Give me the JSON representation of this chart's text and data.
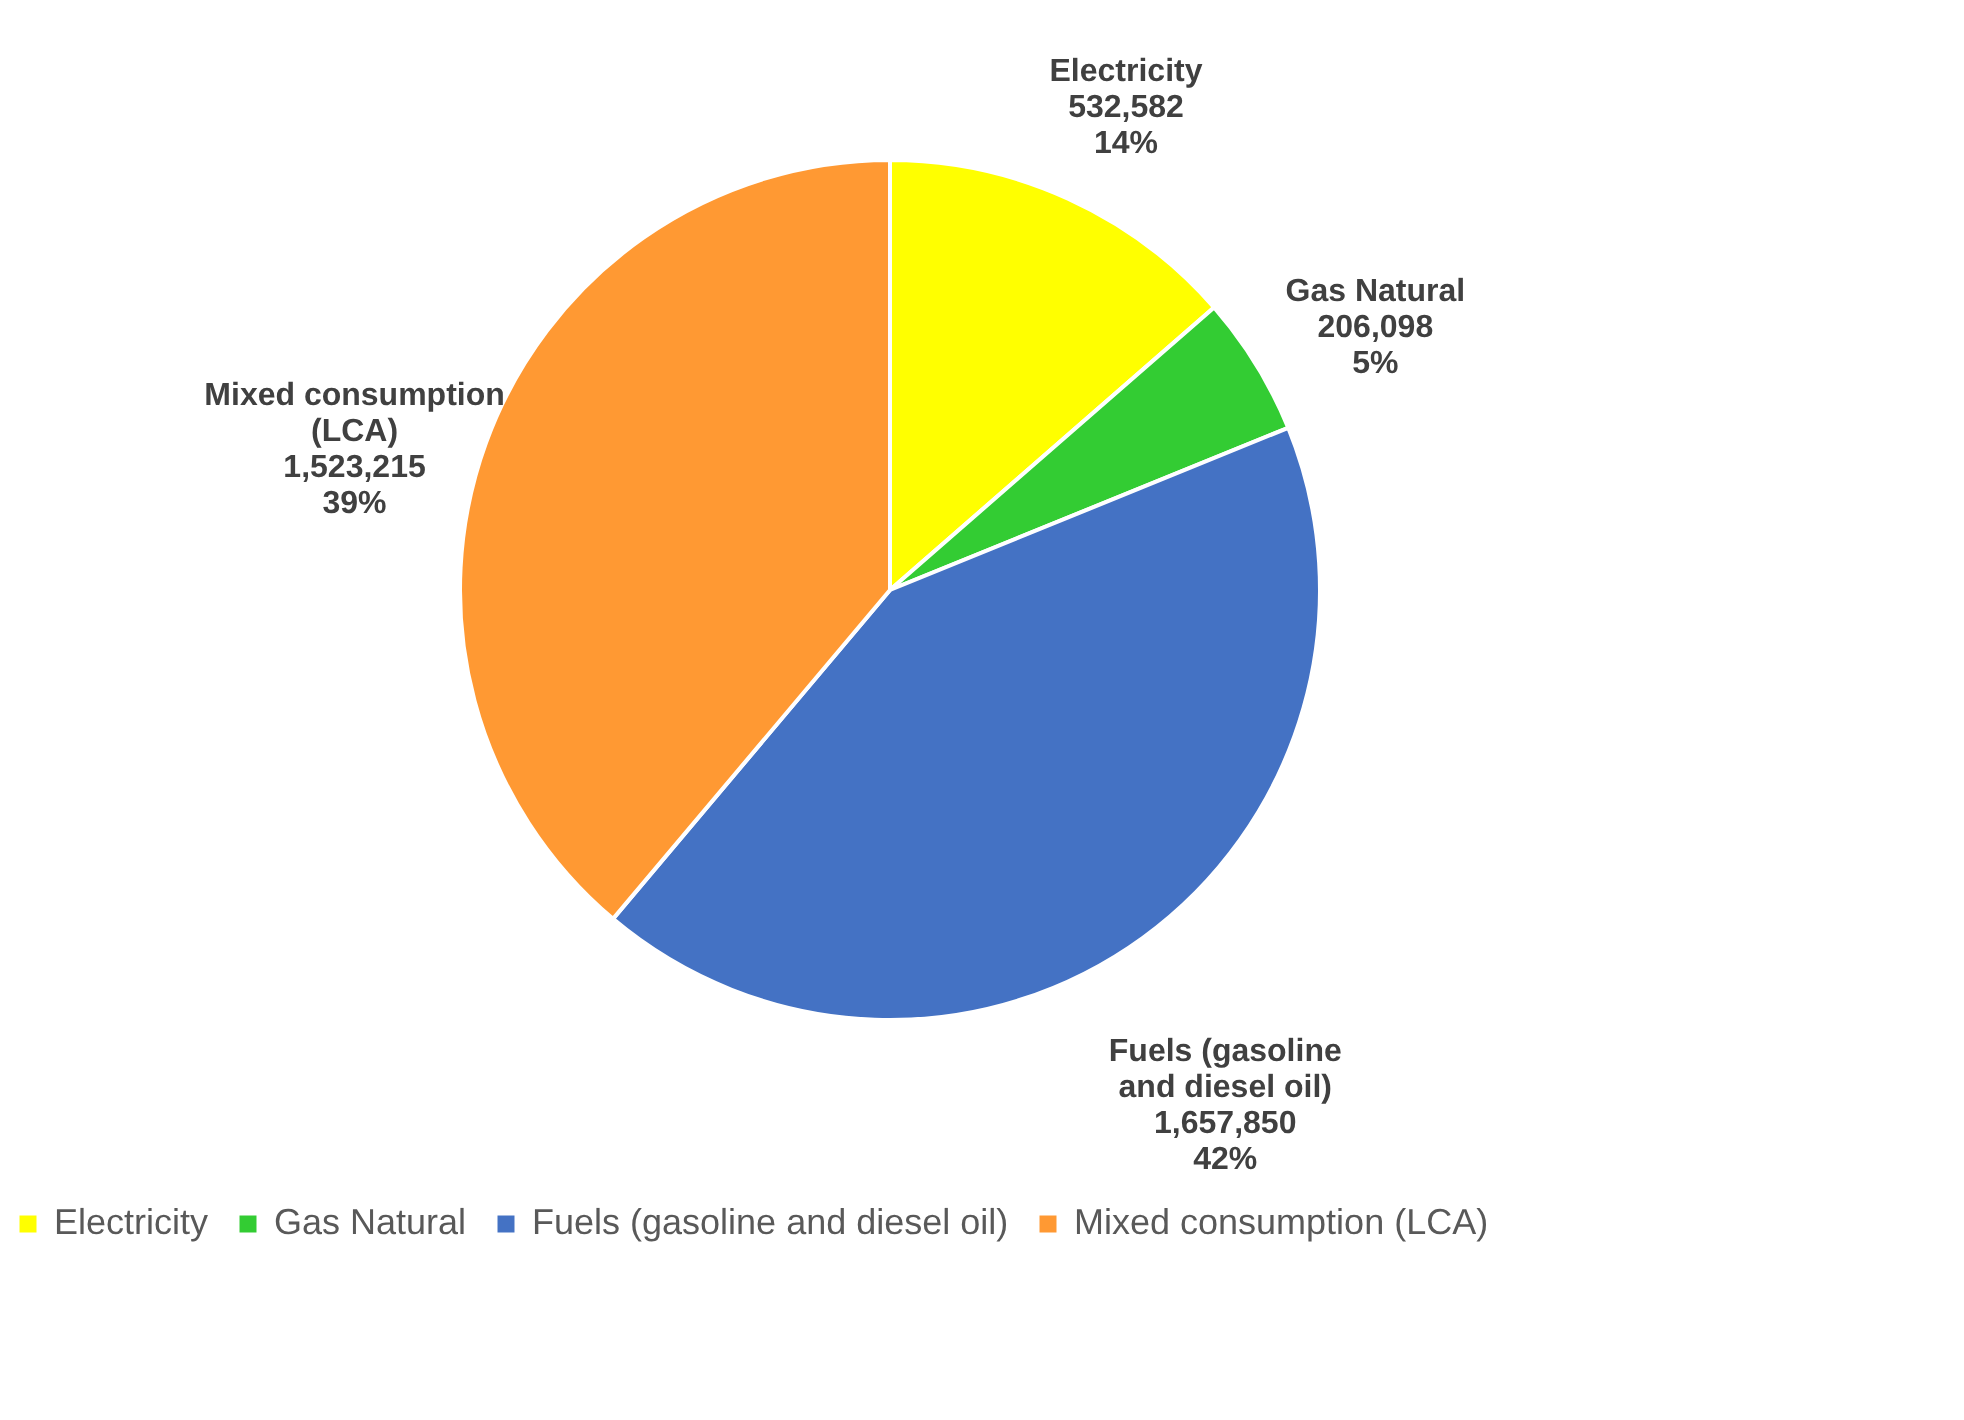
{
  "chart_data": {
    "type": "pie",
    "categories": [
      "Electricity",
      "Gas Natural",
      "Fuels (gasoline and diesel oil)",
      "Mixed consumption (LCA)"
    ],
    "values": [
      532582,
      206098,
      1657850,
      1523215
    ],
    "colors": [
      "#ffff00",
      "#33cc33",
      "#4472c4",
      "#ff9933"
    ],
    "value_labels": [
      "532,582\n14%",
      "206,098\n5%",
      "1,657,850\n42%",
      "1,523,215\n39%"
    ],
    "legend": "bottom"
  }
}
